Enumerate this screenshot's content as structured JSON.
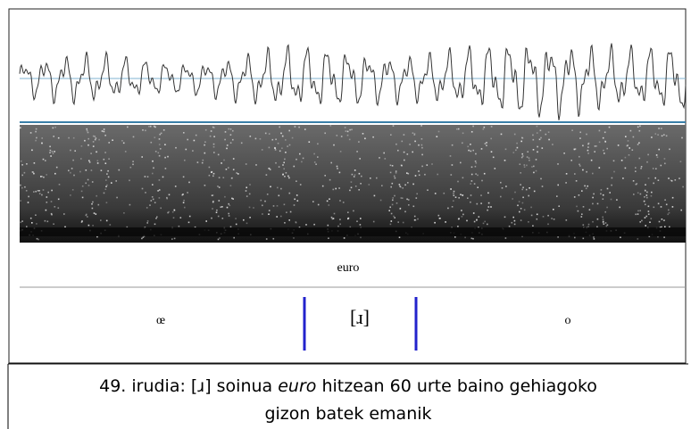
{
  "figure": {
    "word_label": "euro",
    "segments": [
      "œ",
      "[ɹ]",
      "o"
    ]
  },
  "caption": {
    "prefix": "49. irudia: [ɹ] soinua ",
    "italic": "euro",
    "line1_suffix": " hitzean 60 urte baino gehiagoko",
    "line2": "gizon batek emanik"
  }
}
